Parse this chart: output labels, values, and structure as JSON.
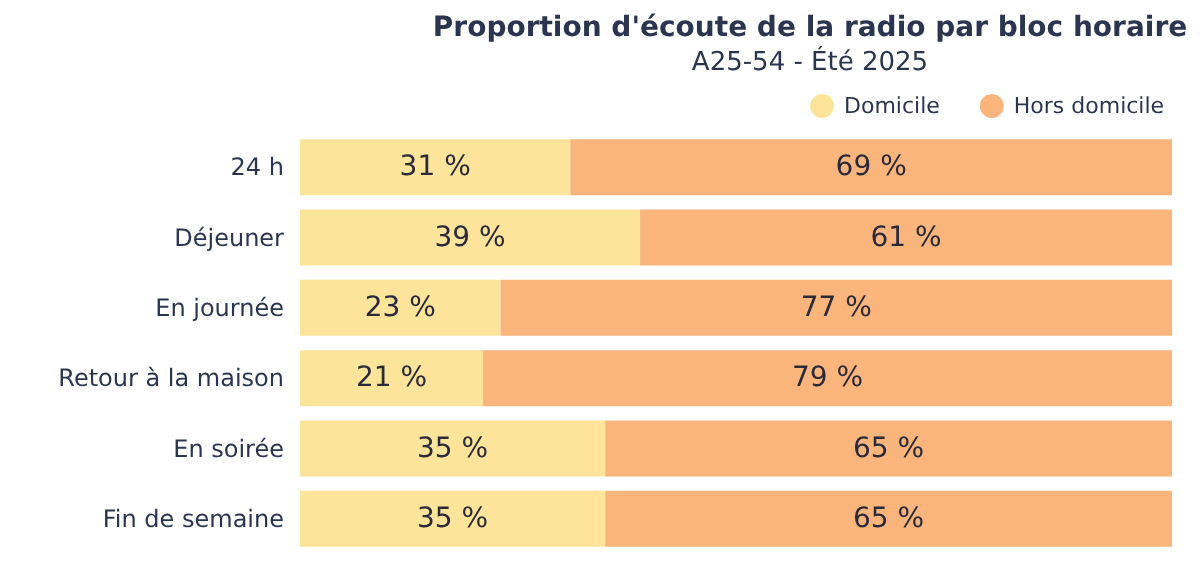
{
  "chart_data": {
    "type": "bar",
    "title": "Proportion d'écoute de la radio par bloc horaire",
    "subtitle": "A25-54 - Été 2025",
    "orientation": "horizontal",
    "stacked": true,
    "legend": "top",
    "xlim": [
      0,
      100
    ],
    "tick_labels": "y",
    "categories": [
      "24 h",
      "Déjeuner",
      "En journée",
      "Retour à la maison",
      "En soirée",
      "Fin de semaine"
    ],
    "series": [
      {
        "name": "Domicile",
        "color": "#fde49b",
        "values": [
          31,
          39,
          23,
          21,
          35,
          35
        ],
        "value_labels": [
          "31 %",
          "39 %",
          "23 %",
          "21 %",
          "35 %",
          "35 %"
        ]
      },
      {
        "name": "Hors domicile",
        "color": "#f9b57c",
        "values": [
          69,
          61,
          77,
          79,
          65,
          65
        ],
        "value_labels": [
          "69 %",
          "61 %",
          "77 %",
          "79 %",
          "65 %",
          "65 %"
        ]
      }
    ]
  }
}
